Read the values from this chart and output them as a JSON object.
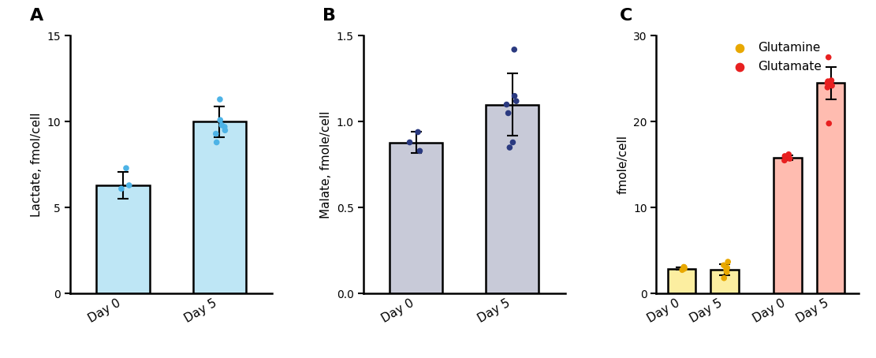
{
  "panel_A": {
    "title": "A",
    "ylabel": "Lactate, fmol/cell",
    "categories": [
      "Day 0",
      "Day 5"
    ],
    "bar_means": [
      6.3,
      10.0
    ],
    "bar_errors": [
      0.8,
      0.9
    ],
    "bar_color": "#BEE6F5",
    "dot_color": "#4DB3E6",
    "dots": [
      [
        6.1,
        6.3,
        7.3
      ],
      [
        8.8,
        9.3,
        9.5,
        9.7,
        9.8,
        10.1,
        11.3
      ]
    ],
    "ylim": [
      0,
      15
    ],
    "yticks": [
      0,
      5,
      10,
      15
    ]
  },
  "panel_B": {
    "title": "B",
    "ylabel": "Malate, fmole/cell",
    "categories": [
      "Day 0",
      "Day 5"
    ],
    "bar_means": [
      0.88,
      1.1
    ],
    "bar_errors": [
      0.06,
      0.18
    ],
    "bar_color": "#C8CAD8",
    "dot_color": "#2B3A80",
    "dots": [
      [
        0.83,
        0.88,
        0.94
      ],
      [
        0.85,
        0.88,
        1.05,
        1.1,
        1.12,
        1.15,
        1.42
      ]
    ],
    "ylim": [
      0,
      1.5
    ],
    "yticks": [
      0.0,
      0.5,
      1.0,
      1.5
    ]
  },
  "panel_C": {
    "title": "C",
    "ylabel": "fmole/cell",
    "xtick_labels": [
      "Day 0",
      "Day 5",
      "Day 0",
      "Day 5"
    ],
    "bar_means": [
      2.9,
      2.8,
      15.8,
      24.5
    ],
    "bar_errors": [
      0.15,
      0.65,
      0.25,
      1.9
    ],
    "bar_colors": [
      "#FCEEA0",
      "#FCEEA0",
      "#FFBCB0",
      "#FFBCB0"
    ],
    "dot_colors": [
      "#E8A800",
      "#E8A800",
      "#E82020",
      "#E82020"
    ],
    "dots": [
      [
        2.75,
        2.9,
        3.05,
        3.1
      ],
      [
        1.8,
        2.5,
        2.8,
        3.0,
        3.3,
        3.7
      ],
      [
        15.5,
        15.7,
        16.0,
        16.2
      ],
      [
        19.8,
        24.0,
        24.2,
        24.5,
        24.7,
        24.8,
        27.5
      ]
    ],
    "ylim": [
      0,
      30
    ],
    "yticks": [
      0,
      10,
      20,
      30
    ],
    "legend": {
      "glutamine_color": "#E8A800",
      "glutamate_color": "#E82020",
      "glutamine_label": "Glutamine",
      "glutamate_label": "Glutamate"
    }
  }
}
